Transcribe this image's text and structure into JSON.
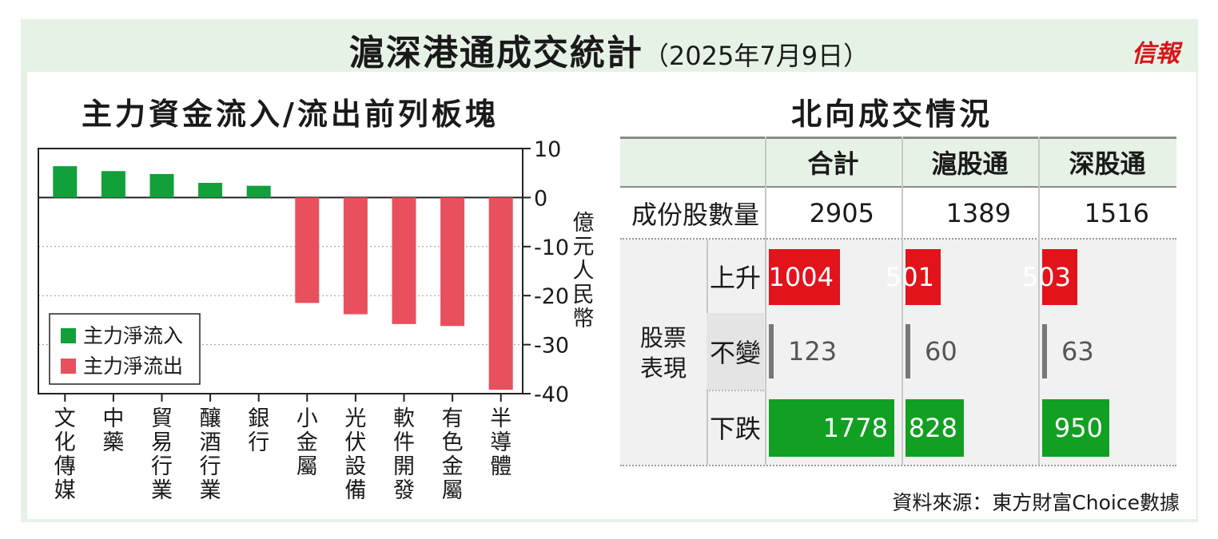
{
  "title": "滬深港通成交統計",
  "title_date": "（2025年7月9日）",
  "logo": "信報",
  "left_title": "主力資金流入/流出前列板塊",
  "right_title": "北向成交情況",
  "unit_label": "億元人民幣",
  "colors": {
    "inflow": "#12a03b",
    "outflow": "#e8505e",
    "up": "#e3131b",
    "flat": "#777777",
    "down": "#12a023",
    "header_bg": "#e7f2e6"
  },
  "chart_data": {
    "type": "bar",
    "title": "主力資金流入/流出前列板塊",
    "ylabel": "億元人民幣",
    "ylim": [
      -40,
      10
    ],
    "yticks": [
      10,
      0,
      -10,
      -20,
      -30,
      -40
    ],
    "grid": true,
    "legend_position": "bottom-left",
    "categories": [
      "文化傳媒",
      "中藥",
      "貿易行業",
      "釀酒行業",
      "銀行",
      "小金屬",
      "光伏設備",
      "軟件開發",
      "有色金屬",
      "半導體"
    ],
    "series": [
      {
        "name": "主力淨流入",
        "values": [
          6.4,
          5.4,
          4.8,
          3.0,
          2.4,
          null,
          null,
          null,
          null,
          null
        ]
      },
      {
        "name": "主力淨流出",
        "values": [
          null,
          null,
          null,
          null,
          null,
          -21.5,
          -23.8,
          -25.8,
          -26.2,
          -39.2
        ]
      }
    ]
  },
  "table": {
    "headers": [
      "合計",
      "滬股通",
      "深股通"
    ],
    "row_count_label": "成份股數量",
    "counts": [
      "2905",
      "1389",
      "1516"
    ],
    "group_label": "股票表現",
    "rows": [
      {
        "label": "上升",
        "values": [
          1004,
          501,
          503
        ]
      },
      {
        "label": "不變",
        "values": [
          123,
          60,
          63
        ]
      },
      {
        "label": "下跌",
        "values": [
          1778,
          828,
          950
        ]
      }
    ]
  },
  "source": "資料來源：東方財富Choice數據"
}
